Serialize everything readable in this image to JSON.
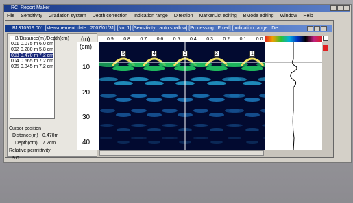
{
  "app_title": "RC_Report Maker",
  "menu": [
    "File",
    "Sensitivity",
    "Gradation system",
    "Depth correction",
    "Indication range",
    "Direction",
    "MarkerList editing",
    "BMode editing",
    "Window",
    "Help"
  ],
  "document": {
    "title": "B1310919.001  [Measurement date : 2007/01/31]  [No. 1]  [Sensitivity : auto shallow]  [Processing : Fixed]  [Indication range : De...",
    "list_header": "B/Distance(m)/Depth(cm)",
    "rows": [
      [
        "001",
        "0.075 m",
        "6.0 cm"
      ],
      [
        "002",
        "0.280 m",
        "5.8 cm"
      ],
      [
        "003",
        "0.470 m",
        "7.2 cm"
      ],
      [
        "004",
        "0.665 m",
        "7.2 cm"
      ],
      [
        "005",
        "0.845 m",
        "7.2 cm"
      ]
    ],
    "cursor_title": "Cursor position",
    "distance_label": "Distance(m)",
    "distance_value": "0.470m",
    "depth_label": "Depth(cm)",
    "depth_value": "7.2cm",
    "permittivity_label": "Relative permittivity",
    "permittivity_value": "9.0",
    "x_unit": "(m)",
    "y_unit": "(cm)",
    "x_ticks": [
      "0.9",
      "0.8",
      "0.7",
      "0.6",
      "0.5",
      "0.4",
      "0.3",
      "0.2",
      "0.1",
      "0.0"
    ],
    "y_ticks": [
      "10",
      "20",
      "30",
      "40"
    ],
    "markers": [
      "5",
      "4",
      "3",
      "2",
      "1"
    ]
  }
}
